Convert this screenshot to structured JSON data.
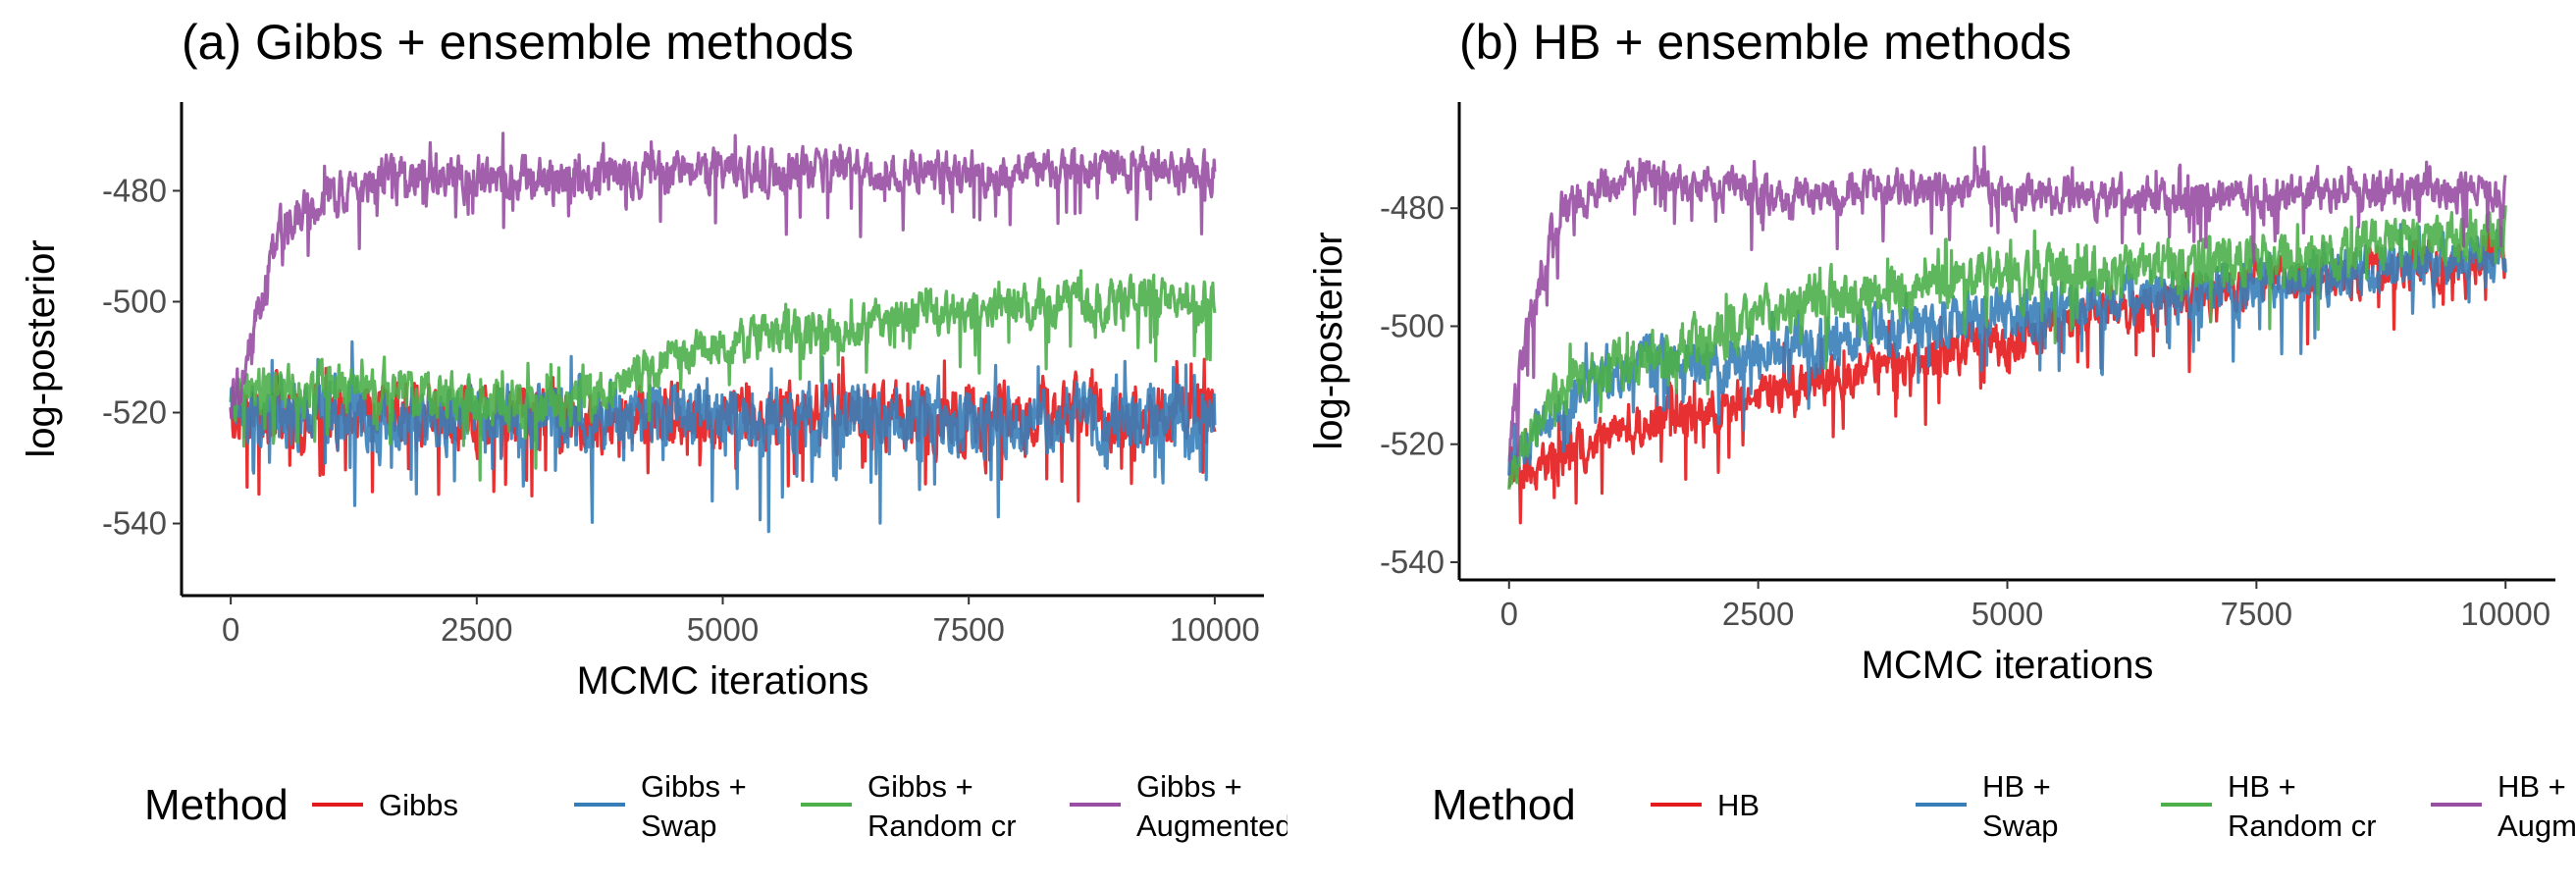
{
  "legend": {
    "title": "Method"
  },
  "chart_data": [
    {
      "type": "line",
      "title": "(a) Gibbs + ensemble methods",
      "xlabel": "MCMC iterations",
      "ylabel": "log-posterior",
      "xlim": [
        -500,
        10500
      ],
      "ylim": [
        -553,
        -464
      ],
      "xticks": [
        0,
        2500,
        5000,
        7500,
        10000
      ],
      "yticks": [
        -540,
        -520,
        -500,
        -480
      ],
      "xtick_labels": [
        "0",
        "2500",
        "5000",
        "7500",
        "10000"
      ],
      "ytick_labels": [
        "-540",
        "-520",
        "-500",
        "-480"
      ],
      "legend_position": "bottom",
      "grid": false,
      "series": [
        {
          "name": [
            "Gibbs"
          ],
          "color": "#E41A1C",
          "x": [
            0,
            200,
            500,
            1000,
            1500,
            2000,
            2500,
            3000,
            3500,
            4000,
            4500,
            5000,
            5500,
            6000,
            6500,
            7000,
            7500,
            8000,
            8500,
            9000,
            9500,
            10000
          ],
          "y": [
            -520,
            -521,
            -520,
            -521,
            -520,
            -521,
            -521,
            -520,
            -521,
            -521,
            -520,
            -521,
            -520,
            -521,
            -520,
            -521,
            -521,
            -520,
            -520,
            -521,
            -520,
            -520
          ],
          "spread": [
            8,
            9,
            10,
            10,
            10,
            10,
            10,
            10,
            10,
            10,
            10,
            10,
            10,
            10,
            10,
            10,
            10,
            10,
            10,
            10,
            10,
            10
          ]
        },
        {
          "name": [
            "Gibbs +",
            "Swap"
          ],
          "color": "#377EB8",
          "x": [
            0,
            200,
            500,
            1000,
            1500,
            2000,
            2500,
            3000,
            3500,
            4000,
            4500,
            5000,
            5500,
            6000,
            6500,
            7000,
            7500,
            8000,
            8500,
            9000,
            9500,
            10000
          ],
          "y": [
            -519,
            -520,
            -521,
            -520,
            -522,
            -521,
            -520,
            -522,
            -521,
            -521,
            -520,
            -522,
            -521,
            -522,
            -521,
            -520,
            -522,
            -521,
            -520,
            -521,
            -522,
            -521
          ],
          "spread": [
            8,
            9,
            10,
            11,
            11,
            11,
            10,
            11,
            10,
            10,
            11,
            11,
            11,
            11,
            11,
            11,
            11,
            11,
            10,
            11,
            11,
            11
          ]
        },
        {
          "name": [
            "Gibbs +",
            "Random cr"
          ],
          "color": "#4DAF4A",
          "x": [
            0,
            200,
            500,
            1000,
            1500,
            2000,
            2500,
            3000,
            3500,
            4000,
            4500,
            5000,
            5500,
            6000,
            6500,
            7000,
            7500,
            8000,
            8500,
            9000,
            9500,
            10000
          ],
          "y": [
            -518,
            -517,
            -516,
            -515,
            -516,
            -517,
            -518,
            -519,
            -518,
            -514,
            -510,
            -508,
            -506,
            -505,
            -504,
            -502,
            -502,
            -501,
            -500,
            -500,
            -499,
            -500
          ],
          "spread": [
            7,
            8,
            8,
            8,
            8,
            8,
            8,
            8,
            8,
            7,
            7,
            7,
            7,
            7,
            7,
            7,
            7,
            7,
            7,
            7,
            7,
            7
          ]
        },
        {
          "name": [
            "Gibbs +",
            "Augmented cr"
          ],
          "color": "#984EA3",
          "x": [
            0,
            200,
            500,
            1000,
            1500,
            2000,
            2500,
            3000,
            3500,
            4000,
            4500,
            5000,
            5500,
            6000,
            6500,
            7000,
            7500,
            8000,
            8500,
            9000,
            9500,
            10000
          ],
          "y": [
            -520,
            -508,
            -487,
            -481,
            -478,
            -477,
            -478,
            -478,
            -478,
            -477,
            -477,
            -476,
            -477,
            -476,
            -477,
            -477,
            -477,
            -476,
            -477,
            -476,
            -477,
            -476
          ],
          "spread": [
            8,
            9,
            8,
            7,
            7,
            7,
            7,
            7,
            7,
            7,
            7,
            7,
            7,
            7,
            7,
            7,
            7,
            7,
            7,
            7,
            7,
            7
          ]
        }
      ]
    },
    {
      "type": "line",
      "title": "(b) HB + ensemble methods",
      "xlabel": "MCMC iterations",
      "ylabel": "log-posterior",
      "xlim": [
        -500,
        10500
      ],
      "ylim": [
        -543,
        -462
      ],
      "xticks": [
        0,
        2500,
        5000,
        7500,
        10000
      ],
      "yticks": [
        -540,
        -520,
        -500,
        -480
      ],
      "xtick_labels": [
        "0",
        "2500",
        "5000",
        "7500",
        "10000"
      ],
      "ytick_labels": [
        "-540",
        "-520",
        "-500",
        "-480"
      ],
      "legend_position": "bottom",
      "grid": false,
      "series": [
        {
          "name": [
            "HB"
          ],
          "color": "#E41A1C",
          "x": [
            0,
            200,
            500,
            1000,
            1500,
            2000,
            2500,
            3000,
            3500,
            4000,
            4500,
            5000,
            5500,
            6000,
            6500,
            7000,
            7500,
            8000,
            8500,
            9000,
            9500,
            10000
          ],
          "y": [
            -525,
            -524,
            -522,
            -518,
            -515,
            -514,
            -512,
            -510,
            -508,
            -506,
            -504,
            -503,
            -501,
            -498,
            -496,
            -495,
            -493,
            -492,
            -491,
            -490,
            -489,
            -488
          ],
          "spread": [
            6,
            6,
            7,
            7,
            7,
            7,
            7,
            7,
            7,
            7,
            7,
            7,
            7,
            7,
            7,
            7,
            7,
            7,
            7,
            7,
            7,
            7
          ]
        },
        {
          "name": [
            "HB +",
            "Swap"
          ],
          "color": "#377EB8",
          "x": [
            0,
            200,
            500,
            1000,
            1500,
            2000,
            2500,
            3000,
            3500,
            4000,
            4500,
            5000,
            5500,
            6000,
            6500,
            7000,
            7500,
            8000,
            8500,
            9000,
            9500,
            10000
          ],
          "y": [
            -523,
            -520,
            -514,
            -508,
            -507,
            -506,
            -505,
            -503,
            -501,
            -500,
            -499,
            -498,
            -497,
            -496,
            -495,
            -494,
            -493,
            -492,
            -491,
            -490,
            -489,
            -488
          ],
          "spread": [
            6,
            7,
            8,
            8,
            8,
            8,
            8,
            8,
            8,
            8,
            8,
            8,
            8,
            8,
            8,
            8,
            8,
            8,
            8,
            8,
            8,
            8
          ]
        },
        {
          "name": [
            "HB +",
            "Random cr"
          ],
          "color": "#4DAF4A",
          "x": [
            0,
            200,
            500,
            1000,
            1500,
            2000,
            2500,
            3000,
            3500,
            4000,
            4500,
            5000,
            5500,
            6000,
            6500,
            7000,
            7500,
            8000,
            8500,
            9000,
            9500,
            10000
          ],
          "y": [
            -525,
            -518,
            -511,
            -507,
            -505,
            -503,
            -499,
            -496,
            -495,
            -494,
            -493,
            -492,
            -491,
            -491,
            -490,
            -490,
            -489,
            -488,
            -487,
            -486,
            -485,
            -484
          ],
          "spread": [
            7,
            7,
            8,
            8,
            8,
            8,
            8,
            8,
            8,
            8,
            8,
            8,
            8,
            8,
            8,
            8,
            8,
            8,
            8,
            8,
            8,
            8
          ]
        },
        {
          "name": [
            "HB +",
            "Augmented cr"
          ],
          "color": "#984EA3",
          "x": [
            0,
            200,
            500,
            1000,
            1500,
            2000,
            2500,
            3000,
            3500,
            4000,
            4500,
            5000,
            5500,
            6000,
            6500,
            7000,
            7500,
            8000,
            8500,
            9000,
            9500,
            10000
          ],
          "y": [
            -520,
            -500,
            -480,
            -476,
            -475,
            -476,
            -478,
            -478,
            -477,
            -477,
            -477,
            -478,
            -478,
            -478,
            -478,
            -478,
            -478,
            -477,
            -477,
            -477,
            -477,
            -478
          ],
          "spread": [
            8,
            8,
            6,
            6,
            6,
            6,
            6,
            6,
            6,
            6,
            6,
            6,
            6,
            6,
            6,
            6,
            6,
            6,
            6,
            6,
            6,
            6
          ]
        }
      ]
    }
  ]
}
